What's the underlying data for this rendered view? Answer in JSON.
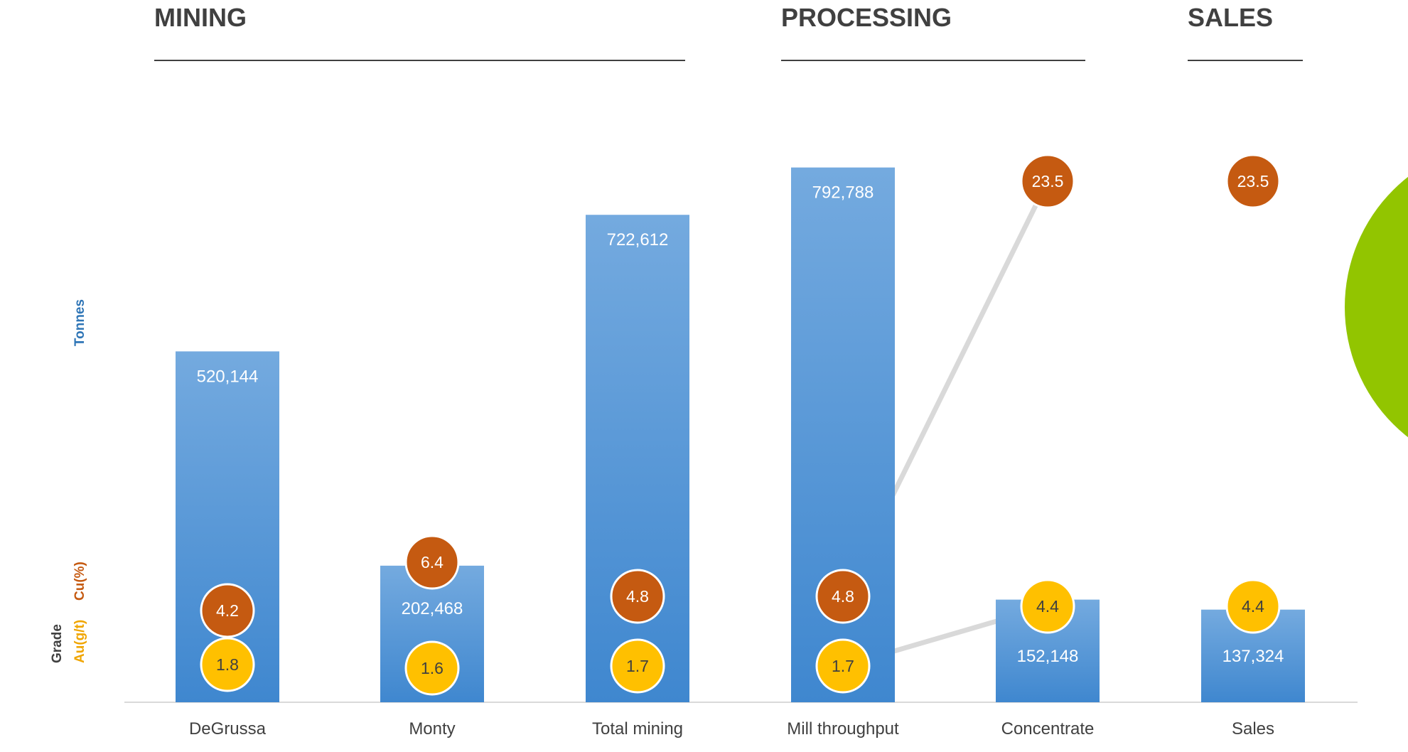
{
  "sections": [
    {
      "id": "mining",
      "label": "MINING"
    },
    {
      "id": "processing",
      "label": "PROCESSING"
    },
    {
      "id": "sales",
      "label": "SALES"
    }
  ],
  "axis_titles": {
    "tonnes": "Tonnes",
    "grade": "Grade",
    "au": "Au(g/t)",
    "cu": "Cu(%)"
  },
  "colors": {
    "bar_top": "#74aadf",
    "bar_bottom": "#3f87cf",
    "cu_bubble": "#c55a11",
    "au_bubble": "#ffc000",
    "tonnes_title": "#2e75b6",
    "au_title": "#f0a500",
    "cu_title": "#c55a11",
    "grade_title": "#404040",
    "accent_circle": "#92c500",
    "connector_line": "#d9d9d9"
  },
  "chart_data": {
    "type": "bar",
    "categories": [
      "DeGrussa",
      "Monty",
      "Total mining",
      "Mill throughput",
      "Concentrate",
      "Sales"
    ],
    "series": [
      {
        "name": "Tonnes",
        "values": [
          520144,
          202468,
          722612,
          792788,
          152148,
          137324
        ],
        "labels": [
          "520,144",
          "202,468",
          "722,612",
          "792,788",
          "152,148",
          "137,324"
        ]
      },
      {
        "name": "Cu(%)",
        "values": [
          4.2,
          6.4,
          4.8,
          4.8,
          23.5,
          23.5
        ],
        "labels": [
          "4.2",
          "6.4",
          "4.8",
          "4.8",
          "23.5",
          "23.5"
        ]
      },
      {
        "name": "Au(g/t)",
        "values": [
          1.8,
          1.6,
          1.7,
          1.7,
          4.4,
          4.4
        ],
        "labels": [
          "1.8",
          "1.6",
          "1.7",
          "1.7",
          "4.4",
          "4.4"
        ]
      }
    ],
    "ylabel": "Tonnes",
    "ylabel_secondary": "Grade Au(g/t) Cu(%)",
    "grid": false,
    "legend": "none"
  }
}
